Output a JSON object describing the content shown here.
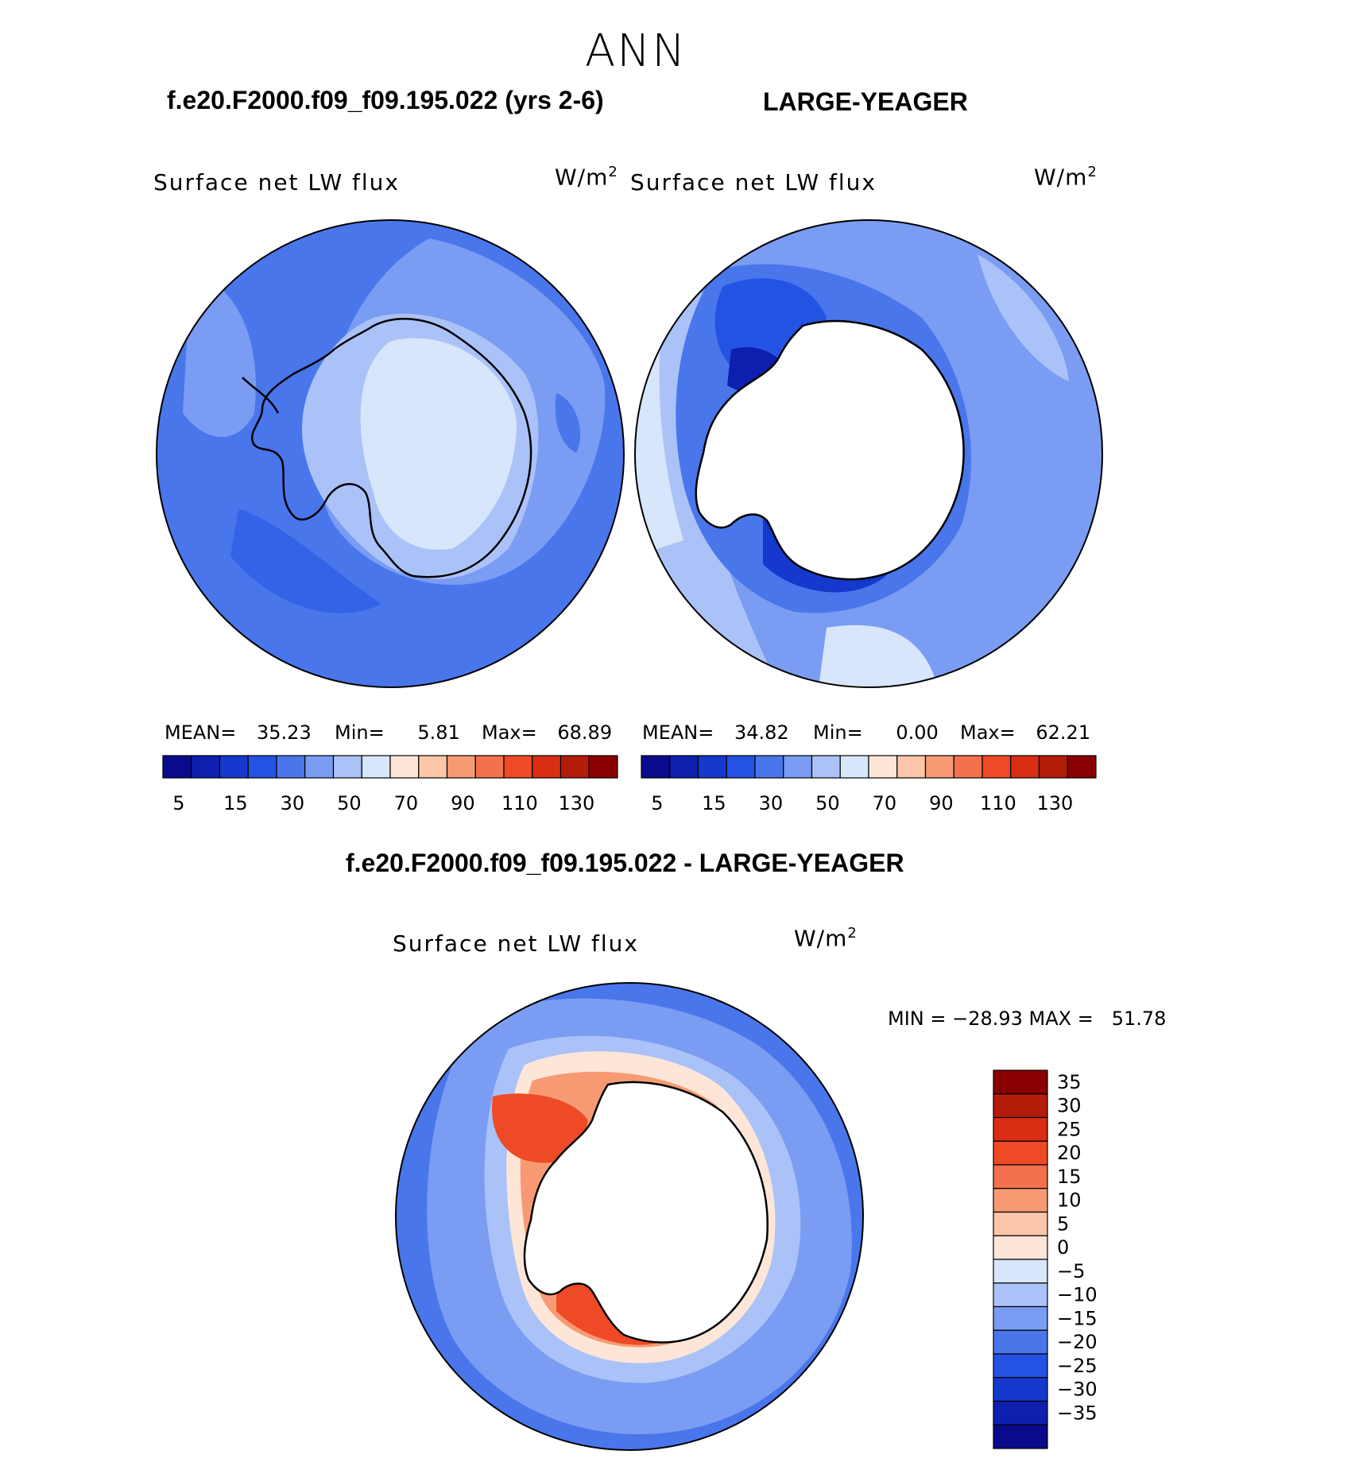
{
  "page": {
    "season": "ANN"
  },
  "panels": [
    {
      "case_title": "f.e20.F2000.f09_f09.195.022 (yrs 2-6)",
      "variable": "Surface net LW flux",
      "units": "W/m",
      "units_exp": "2",
      "stats": {
        "mean_label": "MEAN=",
        "mean": "35.23",
        "min_label": "Min=",
        "min": "5.81",
        "max_label": "Max=",
        "max": "68.89"
      }
    },
    {
      "case_title": "LARGE-YEAGER",
      "variable": "Surface net LW flux",
      "units": "W/m",
      "units_exp": "2",
      "stats": {
        "mean_label": "MEAN=",
        "mean": "34.82",
        "min_label": "Min=",
        "min": "0.00",
        "max_label": "Max=",
        "max": "62.21"
      }
    }
  ],
  "diff_panel": {
    "case_title": "f.e20.F2000.f09_f09.195.022 - LARGE-YEAGER",
    "variable": "Surface net LW flux",
    "units": "W/m",
    "units_exp": "2",
    "minmax_text": "MIN = −28.93 MAX =   51.78"
  },
  "chart_data": [
    {
      "type": "heatmap",
      "title": "f.e20.F2000.f09_f09.195.022 (yrs 2-6)",
      "variable": "Surface net LW flux",
      "units": "W/m2",
      "projection": "south polar stereographic",
      "stats": {
        "mean": 35.23,
        "min": 5.81,
        "max": 68.89
      },
      "colorbar": {
        "orientation": "horizontal",
        "tick_labels": [
          "5",
          "15",
          "30",
          "50",
          "70",
          "90",
          "110",
          "130"
        ],
        "colors": [
          "#0a0a8c",
          "#0d1fae",
          "#1539cc",
          "#2453e4",
          "#4a76ec",
          "#7a9cf2",
          "#aac2f7",
          "#d7e6fb",
          "#fde6d8",
          "#fbc6a9",
          "#f79a74",
          "#f3714c",
          "#ef4a26",
          "#d92e13",
          "#b41c0a",
          "#8a0000"
        ]
      }
    },
    {
      "type": "heatmap",
      "title": "LARGE-YEAGER",
      "variable": "Surface net LW flux",
      "units": "W/m2",
      "projection": "south polar stereographic",
      "stats": {
        "mean": 34.82,
        "min": 0.0,
        "max": 62.21
      },
      "colorbar": {
        "orientation": "horizontal",
        "tick_labels": [
          "5",
          "15",
          "30",
          "50",
          "70",
          "90",
          "110",
          "130"
        ],
        "colors": [
          "#0a0a8c",
          "#0d1fae",
          "#1539cc",
          "#2453e4",
          "#4a76ec",
          "#7a9cf2",
          "#aac2f7",
          "#d7e6fb",
          "#fde6d8",
          "#fbc6a9",
          "#f79a74",
          "#f3714c",
          "#ef4a26",
          "#d92e13",
          "#b41c0a",
          "#8a0000"
        ]
      }
    },
    {
      "type": "heatmap",
      "title": "f.e20.F2000.f09_f09.195.022 - LARGE-YEAGER",
      "variable": "Surface net LW flux",
      "units": "W/m2",
      "projection": "south polar stereographic",
      "stats": {
        "min": -28.93,
        "max": 51.78
      },
      "colorbar": {
        "orientation": "vertical",
        "tick_labels": [
          "35",
          "30",
          "25",
          "20",
          "15",
          "10",
          "5",
          "0",
          "−5",
          "−10",
          "−15",
          "−20",
          "−25",
          "−30",
          "−35"
        ],
        "colors": [
          "#8a0000",
          "#b41c0a",
          "#d92e13",
          "#ef4a26",
          "#f3714c",
          "#f79a74",
          "#fbc6a9",
          "#fde6d8",
          "#d7e6fb",
          "#aac2f7",
          "#7a9cf2",
          "#4a76ec",
          "#2453e4",
          "#1539cc",
          "#0d1fae",
          "#0a0a8c"
        ]
      }
    }
  ]
}
